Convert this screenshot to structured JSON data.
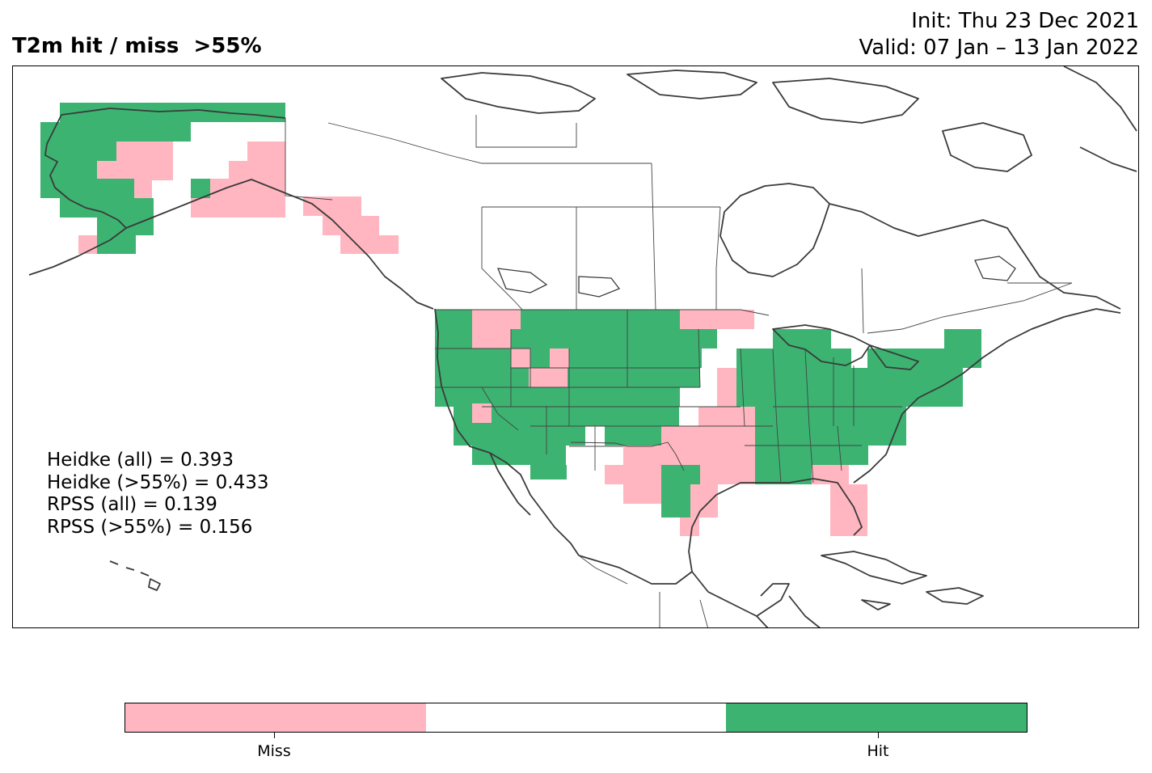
{
  "title": {
    "left": "T2m hit / miss  >55%",
    "init": "Init: Thu 23 Dec 2021",
    "valid": "Valid: 07 Jan – 13 Jan 2022"
  },
  "stats": [
    "Heidke (all) = 0.393",
    "Heidke (>55%) = 0.433",
    "RPSS (all) = 0.139",
    "RPSS (>55%) = 0.156"
  ],
  "legend": {
    "miss_label": "Miss",
    "hit_label": "Hit",
    "miss_color": "#ffb6c1",
    "neutral_color": "#ffffff",
    "hit_color": "#3cb371"
  },
  "map": {
    "region": "North America",
    "categories": [
      "Miss",
      "Hit"
    ]
  }
}
